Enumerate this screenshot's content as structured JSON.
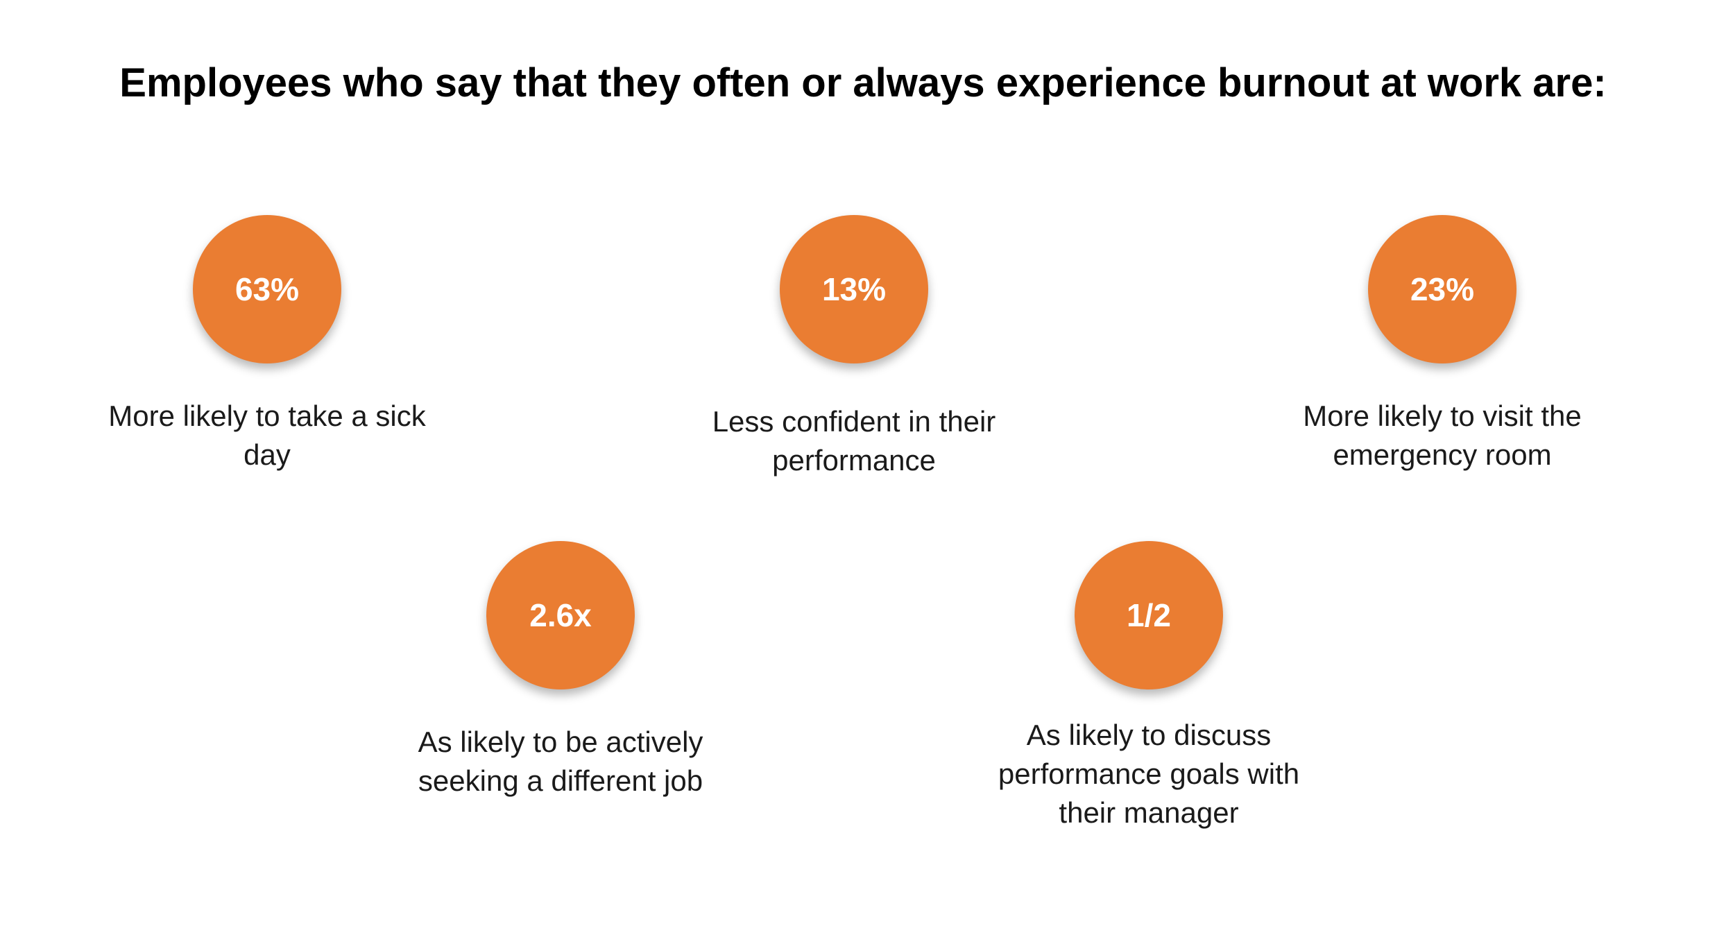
{
  "title": "Employees who say that they often or always experience burnout at work are:",
  "colors": {
    "circle_fill": "#EA7D32",
    "value_text": "#FFFFFF",
    "label_text": "#1A1A1A",
    "background": "#FFFFFF"
  },
  "stats": [
    {
      "value": "63%",
      "label": "More likely to take a sick day"
    },
    {
      "value": "13%",
      "label": "Less confident in their performance"
    },
    {
      "value": "23%",
      "label": "More likely to visit the emergency room"
    },
    {
      "value": "2.6x",
      "label": "As likely to be actively seeking a different job"
    },
    {
      "value": "1/2",
      "label": "As likely to discuss performance goals with their manager"
    }
  ]
}
